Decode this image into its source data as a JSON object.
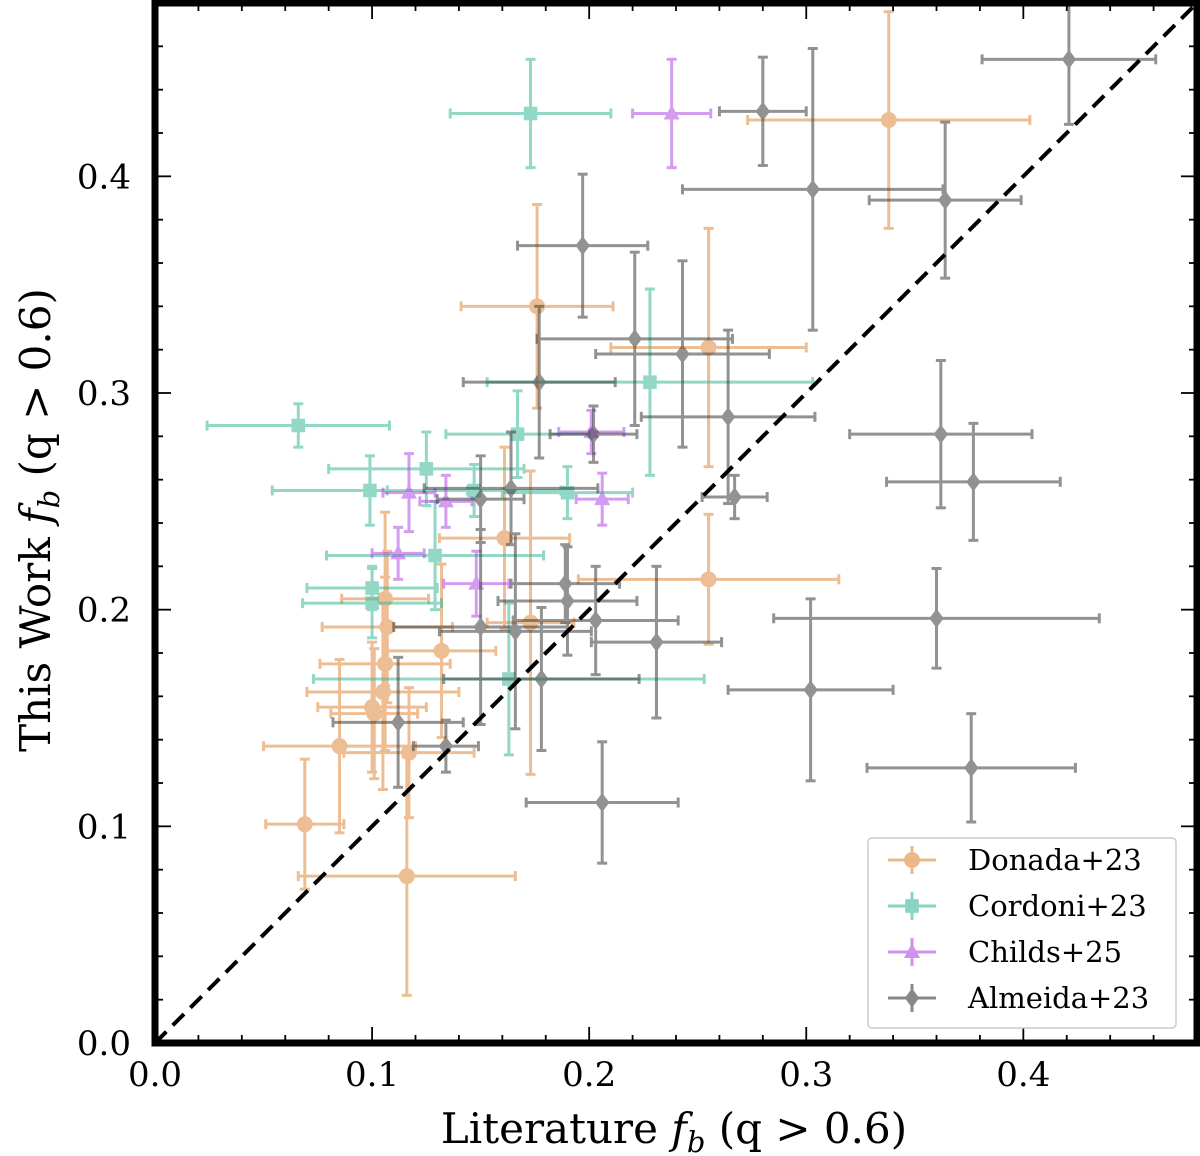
{
  "chart_data": {
    "type": "scatter",
    "xlabel": "Literature f_b (q > 0.6)",
    "xlabel_main": "Literature ",
    "xlabel_sym": "f",
    "xlabel_sub": "b",
    "xlabel_tail": " (q > 0.6)",
    "ylabel": "This Work f_b (q > 0.6)",
    "ylabel_main": "This Work ",
    "ylabel_sym": "f",
    "ylabel_sub": "b",
    "ylabel_tail": " (q > 0.6)",
    "xlim": [
      0.0,
      0.48
    ],
    "ylim": [
      0.0,
      0.48
    ],
    "x_ticks": [
      {
        "v": 0.0,
        "label": "0.0"
      },
      {
        "v": 0.1,
        "label": "0.1"
      },
      {
        "v": 0.2,
        "label": "0.2"
      },
      {
        "v": 0.3,
        "label": "0.3"
      },
      {
        "v": 0.4,
        "label": "0.4"
      }
    ],
    "y_ticks": [
      {
        "v": 0.0,
        "label": "0.0"
      },
      {
        "v": 0.1,
        "label": "0.1"
      },
      {
        "v": 0.2,
        "label": "0.2"
      },
      {
        "v": 0.3,
        "label": "0.3"
      },
      {
        "v": 0.4,
        "label": "0.4"
      }
    ],
    "reference_line": "y = x",
    "legend_position": "bottom-right",
    "series": [
      {
        "name": "Donada+23",
        "color": "#e08a3c",
        "marker": "circle",
        "points": [
          {
            "x": 0.338,
            "y": 0.426,
            "xerr": 0.065,
            "yerr": 0.05
          },
          {
            "x": 0.176,
            "y": 0.34,
            "xerr": 0.035,
            "yerr": 0.047
          },
          {
            "x": 0.255,
            "y": 0.321,
            "xerr": 0.045,
            "yerr": 0.055
          },
          {
            "x": 0.161,
            "y": 0.233,
            "xerr": 0.03,
            "yerr": 0.042
          },
          {
            "x": 0.255,
            "y": 0.214,
            "xerr": 0.06,
            "yerr": 0.03
          },
          {
            "x": 0.106,
            "y": 0.205,
            "xerr": 0.02,
            "yerr": 0.04
          },
          {
            "x": 0.107,
            "y": 0.192,
            "xerr": 0.03,
            "yerr": 0.035
          },
          {
            "x": 0.173,
            "y": 0.194,
            "xerr": 0.02,
            "yerr": 0.07
          },
          {
            "x": 0.132,
            "y": 0.181,
            "xerr": 0.025,
            "yerr": 0.04
          },
          {
            "x": 0.106,
            "y": 0.175,
            "xerr": 0.03,
            "yerr": 0.04
          },
          {
            "x": 0.105,
            "y": 0.162,
            "xerr": 0.035,
            "yerr": 0.045
          },
          {
            "x": 0.1,
            "y": 0.155,
            "xerr": 0.025,
            "yerr": 0.03
          },
          {
            "x": 0.101,
            "y": 0.152,
            "xerr": 0.02,
            "yerr": 0.03
          },
          {
            "x": 0.117,
            "y": 0.134,
            "xerr": 0.03,
            "yerr": 0.03
          },
          {
            "x": 0.085,
            "y": 0.137,
            "xerr": 0.035,
            "yerr": 0.04
          },
          {
            "x": 0.069,
            "y": 0.101,
            "xerr": 0.018,
            "yerr": 0.03
          },
          {
            "x": 0.116,
            "y": 0.077,
            "xerr": 0.05,
            "yerr": 0.055
          }
        ]
      },
      {
        "name": "Cordoni+23",
        "color": "#3cb89a",
        "marker": "square",
        "points": [
          {
            "x": 0.173,
            "y": 0.429,
            "xerr": 0.037,
            "yerr": 0.025
          },
          {
            "x": 0.228,
            "y": 0.305,
            "xerr": 0.075,
            "yerr": 0.043
          },
          {
            "x": 0.066,
            "y": 0.285,
            "xerr": 0.042,
            "yerr": 0.01
          },
          {
            "x": 0.167,
            "y": 0.281,
            "xerr": 0.033,
            "yerr": 0.02
          },
          {
            "x": 0.125,
            "y": 0.265,
            "xerr": 0.045,
            "yerr": 0.017
          },
          {
            "x": 0.099,
            "y": 0.255,
            "xerr": 0.045,
            "yerr": 0.016
          },
          {
            "x": 0.147,
            "y": 0.255,
            "xerr": 0.04,
            "yerr": 0.012
          },
          {
            "x": 0.19,
            "y": 0.254,
            "xerr": 0.03,
            "yerr": 0.012
          },
          {
            "x": 0.129,
            "y": 0.225,
            "xerr": 0.05,
            "yerr": 0.025
          },
          {
            "x": 0.1,
            "y": 0.21,
            "xerr": 0.03,
            "yerr": 0.01
          },
          {
            "x": 0.1,
            "y": 0.203,
            "xerr": 0.032,
            "yerr": 0.016
          },
          {
            "x": 0.163,
            "y": 0.168,
            "xerr": 0.09,
            "yerr": 0.035
          }
        ]
      },
      {
        "name": "Childs+25",
        "color": "#b04de6",
        "marker": "triangle",
        "points": [
          {
            "x": 0.238,
            "y": 0.429,
            "xerr": 0.018,
            "yerr": 0.025
          },
          {
            "x": 0.201,
            "y": 0.282,
            "xerr": 0.015,
            "yerr": 0.01
          },
          {
            "x": 0.117,
            "y": 0.254,
            "xerr": 0.012,
            "yerr": 0.018
          },
          {
            "x": 0.134,
            "y": 0.25,
            "xerr": 0.012,
            "yerr": 0.012
          },
          {
            "x": 0.206,
            "y": 0.251,
            "xerr": 0.012,
            "yerr": 0.012
          },
          {
            "x": 0.112,
            "y": 0.226,
            "xerr": 0.012,
            "yerr": 0.012
          },
          {
            "x": 0.148,
            "y": 0.212,
            "xerr": 0.015,
            "yerr": 0.015
          }
        ]
      },
      {
        "name": "Almeida+23",
        "color": "#3a3a3a",
        "marker": "diamond",
        "points": [
          {
            "x": 0.421,
            "y": 0.454,
            "xerr": 0.04,
            "yerr": 0.03
          },
          {
            "x": 0.28,
            "y": 0.43,
            "xerr": 0.02,
            "yerr": 0.025
          },
          {
            "x": 0.303,
            "y": 0.394,
            "xerr": 0.06,
            "yerr": 0.065
          },
          {
            "x": 0.364,
            "y": 0.389,
            "xerr": 0.035,
            "yerr": 0.036
          },
          {
            "x": 0.197,
            "y": 0.368,
            "xerr": 0.03,
            "yerr": 0.033
          },
          {
            "x": 0.221,
            "y": 0.325,
            "xerr": 0.045,
            "yerr": 0.04
          },
          {
            "x": 0.243,
            "y": 0.318,
            "xerr": 0.04,
            "yerr": 0.043
          },
          {
            "x": 0.177,
            "y": 0.305,
            "xerr": 0.035,
            "yerr": 0.035
          },
          {
            "x": 0.264,
            "y": 0.289,
            "xerr": 0.04,
            "yerr": 0.04
          },
          {
            "x": 0.202,
            "y": 0.281,
            "xerr": 0.02,
            "yerr": 0.013
          },
          {
            "x": 0.362,
            "y": 0.281,
            "xerr": 0.042,
            "yerr": 0.034
          },
          {
            "x": 0.377,
            "y": 0.259,
            "xerr": 0.04,
            "yerr": 0.027
          },
          {
            "x": 0.164,
            "y": 0.256,
            "xerr": 0.04,
            "yerr": 0.026
          },
          {
            "x": 0.15,
            "y": 0.251,
            "xerr": 0.02,
            "yerr": 0.02
          },
          {
            "x": 0.267,
            "y": 0.252,
            "xerr": 0.015,
            "yerr": 0.01
          },
          {
            "x": 0.189,
            "y": 0.212,
            "xerr": 0.025,
            "yerr": 0.018
          },
          {
            "x": 0.19,
            "y": 0.204,
            "xerr": 0.032,
            "yerr": 0.025
          },
          {
            "x": 0.203,
            "y": 0.195,
            "xerr": 0.038,
            "yerr": 0.025
          },
          {
            "x": 0.15,
            "y": 0.192,
            "xerr": 0.04,
            "yerr": 0.045
          },
          {
            "x": 0.166,
            "y": 0.19,
            "xerr": 0.035,
            "yerr": 0.045
          },
          {
            "x": 0.36,
            "y": 0.196,
            "xerr": 0.075,
            "yerr": 0.023
          },
          {
            "x": 0.231,
            "y": 0.185,
            "xerr": 0.03,
            "yerr": 0.035
          },
          {
            "x": 0.178,
            "y": 0.168,
            "xerr": 0.045,
            "yerr": 0.033
          },
          {
            "x": 0.302,
            "y": 0.163,
            "xerr": 0.038,
            "yerr": 0.042
          },
          {
            "x": 0.112,
            "y": 0.148,
            "xerr": 0.03,
            "yerr": 0.03
          },
          {
            "x": 0.134,
            "y": 0.137,
            "xerr": 0.015,
            "yerr": 0.012
          },
          {
            "x": 0.376,
            "y": 0.127,
            "xerr": 0.048,
            "yerr": 0.025
          },
          {
            "x": 0.206,
            "y": 0.111,
            "xerr": 0.035,
            "yerr": 0.028
          }
        ]
      }
    ]
  }
}
